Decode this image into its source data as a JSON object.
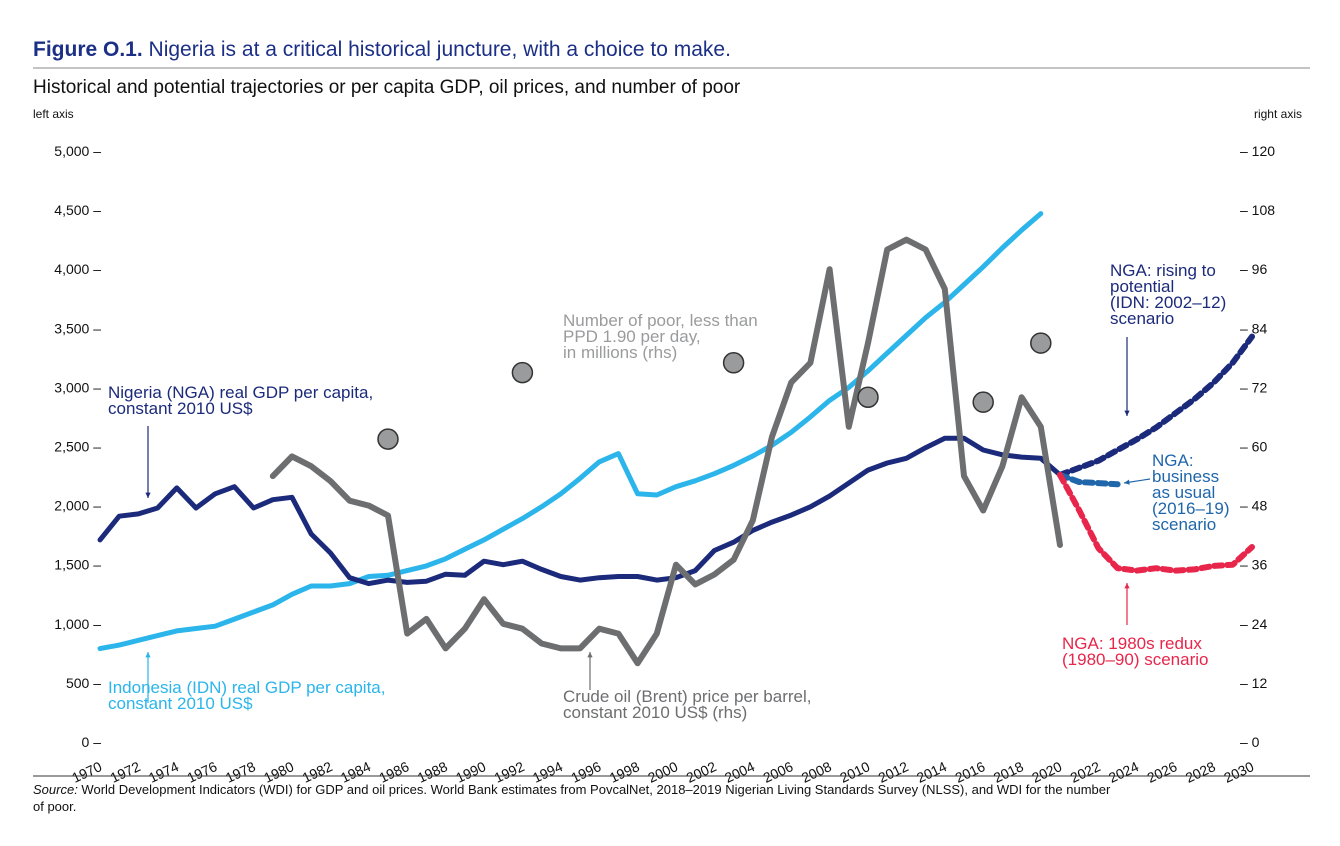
{
  "figure_label": "Figure O.1.",
  "figure_title": " Nigeria is at a critical historical juncture, with a choice to make.",
  "source_label": "Source:",
  "source_text_1": " World Development Indicators (WDI) for GDP and oil prices. World Bank estimates from PovcalNet, 2018–2019 Nigerian Living Standards Survey (NLSS), and WDI for the number",
  "source_text_2": "of poor.",
  "colors": {
    "nga": "#1b2a7a",
    "idn": "#2bb5ea",
    "oil": "#6d6e70",
    "poor": "#9a9b9d",
    "bau": "#1f66aa",
    "redux": "#e8264b",
    "title": "#1b2f86"
  },
  "chart_data": {
    "type": "line",
    "title": "Historical and potential trajectories or per capita GDP, oil prices, and number of poor",
    "left_axis_label": "left axis",
    "right_axis_label": "right axis",
    "ylim": [
      0,
      5000
    ],
    "y2lim": [
      0,
      120
    ],
    "xlim": [
      1970,
      2030
    ],
    "y_ticks": [
      "0 –",
      "500 –",
      "1,000 –",
      "1,500 –",
      "2,000 –",
      "2,500 –",
      "3,000 –",
      "3,500 –",
      "4,000 –",
      "4,500 –",
      "5,000 –"
    ],
    "y2_ticks": [
      "– 0",
      "– 12",
      "– 24",
      "– 36",
      "– 48",
      "– 60",
      "– 72",
      "– 84",
      "– 96",
      "– 108",
      "– 120"
    ],
    "x_ticks": [
      "1970",
      "1972",
      "1974",
      "1976",
      "1978",
      "1980",
      "1982",
      "1984",
      "1986",
      "1988",
      "1990",
      "1992",
      "1994",
      "1996",
      "1998",
      "2000",
      "2002",
      "2004",
      "2006",
      "2008",
      "2010",
      "2012",
      "2014",
      "2016",
      "2018",
      "2020",
      "2022",
      "2024",
      "2026",
      "2028",
      "2030"
    ],
    "series": [
      {
        "name": "Nigeria (NGA) real GDP per capita, constant 2010 US$",
        "axis": "left",
        "style": "solid",
        "color_key": "nga",
        "x": [
          1970,
          1971,
          1972,
          1973,
          1974,
          1975,
          1976,
          1977,
          1978,
          1979,
          1980,
          1981,
          1982,
          1983,
          1984,
          1985,
          1986,
          1987,
          1988,
          1989,
          1990,
          1991,
          1992,
          1993,
          1994,
          1995,
          1996,
          1997,
          1998,
          1999,
          2000,
          2001,
          2002,
          2003,
          2004,
          2005,
          2006,
          2007,
          2008,
          2009,
          2010,
          2011,
          2012,
          2013,
          2014,
          2015,
          2016,
          2017,
          2018,
          2019,
          2020
        ],
        "values": [
          1710,
          1910,
          1930,
          1980,
          2150,
          1980,
          2100,
          2160,
          1980,
          2050,
          2070,
          1760,
          1600,
          1390,
          1340,
          1370,
          1350,
          1360,
          1420,
          1410,
          1530,
          1500,
          1530,
          1460,
          1400,
          1370,
          1390,
          1400,
          1400,
          1370,
          1390,
          1450,
          1620,
          1690,
          1790,
          1860,
          1920,
          1990,
          2080,
          2190,
          2300,
          2360,
          2400,
          2490,
          2570,
          2570,
          2470,
          2430,
          2410,
          2400,
          2260
        ]
      },
      {
        "name": "Indonesia (IDN) real GDP per capita, constant 2010 US$",
        "axis": "left",
        "style": "solid",
        "color_key": "idn",
        "x": [
          1970,
          1971,
          1972,
          1973,
          1974,
          1975,
          1976,
          1977,
          1978,
          1979,
          1980,
          1981,
          1982,
          1983,
          1984,
          1985,
          1986,
          1987,
          1988,
          1989,
          1990,
          1991,
          1992,
          1993,
          1994,
          1995,
          1996,
          1997,
          1998,
          1999,
          2000,
          2001,
          2002,
          2003,
          2004,
          2005,
          2006,
          2007,
          2008,
          2009,
          2010,
          2011,
          2012,
          2013,
          2014,
          2015,
          2016,
          2017,
          2018,
          2019
        ],
        "values": [
          790,
          820,
          860,
          900,
          940,
          960,
          980,
          1040,
          1100,
          1160,
          1250,
          1320,
          1320,
          1340,
          1400,
          1410,
          1450,
          1490,
          1550,
          1630,
          1710,
          1800,
          1890,
          1990,
          2100,
          2230,
          2370,
          2440,
          2100,
          2090,
          2160,
          2210,
          2270,
          2340,
          2420,
          2510,
          2620,
          2750,
          2890,
          3000,
          3140,
          3290,
          3440,
          3590,
          3720,
          3870,
          4020,
          4180,
          4330,
          4470
        ]
      },
      {
        "name": "Crude oil (Brent) price per barrel, constant 2010 US$ (rhs)",
        "axis": "right",
        "style": "solid",
        "color_key": "oil",
        "x": [
          1979,
          1980,
          1981,
          1982,
          1983,
          1984,
          1985,
          1986,
          1987,
          1988,
          1989,
          1990,
          1991,
          1992,
          1993,
          1994,
          1995,
          1996,
          1997,
          1998,
          1999,
          2000,
          2001,
          2002,
          2003,
          2004,
          2005,
          2006,
          2007,
          2008,
          2009,
          2010,
          2011,
          2012,
          2013,
          2014,
          2015,
          2016,
          2017,
          2018,
          2019,
          2020
        ],
        "values": [
          54,
          58,
          56,
          53,
          49,
          48,
          46,
          22,
          25,
          19,
          23,
          29,
          24,
          23,
          20,
          19,
          19,
          23,
          22,
          16,
          22,
          36,
          32,
          34,
          37,
          45,
          62,
          73,
          77,
          96,
          64,
          81,
          100,
          102,
          100,
          92,
          54,
          47,
          56,
          70,
          64,
          40
        ]
      },
      {
        "name": "Number of poor, less than PPD 1.90 per day, in millions (rhs)",
        "axis": "right",
        "style": "markers",
        "color_key": "poor",
        "x": [
          1985,
          1992,
          2003,
          2010,
          2016,
          2019
        ],
        "values": [
          61.5,
          75,
          77,
          70,
          69,
          81
        ]
      },
      {
        "name": "NGA: rising to potential (IDN: 2002–12) scenario",
        "axis": "left",
        "style": "dashed",
        "color_key": "nga",
        "x": [
          2020,
          2021,
          2022,
          2023,
          2024,
          2025,
          2026,
          2027,
          2028,
          2029,
          2030
        ],
        "values": [
          2260,
          2320,
          2380,
          2470,
          2560,
          2660,
          2780,
          2900,
          3040,
          3210,
          3430
        ]
      },
      {
        "name": "NGA: business as usual (2016–19) scenario",
        "axis": "left",
        "style": "dashed",
        "color_key": "bau",
        "x": [
          2020,
          2021,
          2022,
          2023
        ],
        "values": [
          2260,
          2200,
          2190,
          2180
        ]
      },
      {
        "name": "NGA: 1980s redux (1980–90) scenario",
        "axis": "left",
        "style": "dashed",
        "color_key": "redux",
        "x": [
          2020,
          2021,
          2022,
          2023,
          2024,
          2025,
          2026,
          2027,
          2028,
          2029,
          2030
        ],
        "values": [
          2260,
          1960,
          1640,
          1470,
          1450,
          1470,
          1450,
          1460,
          1490,
          1500,
          1650
        ]
      }
    ],
    "annotations": {
      "nga": [
        "Nigeria (NGA) real GDP per capita,",
        "constant 2010 US$"
      ],
      "idn": [
        "Indonesia (IDN) real GDP per capita,",
        "constant 2010 US$"
      ],
      "poor": [
        "Number of poor, less than",
        "PPD 1.90 per day,",
        "in millions (rhs)"
      ],
      "oil": [
        "Crude oil (Brent) price per barrel,",
        "constant 2010 US$ (rhs)"
      ],
      "rising": [
        "NGA: rising to",
        "potential",
        "(IDN: 2002–12)",
        "scenario"
      ],
      "bau": [
        "NGA:",
        "business",
        "as usual",
        "(2016–19)",
        "scenario"
      ],
      "redux": [
        "NGA: 1980s redux",
        "(1980–90) scenario"
      ]
    }
  }
}
